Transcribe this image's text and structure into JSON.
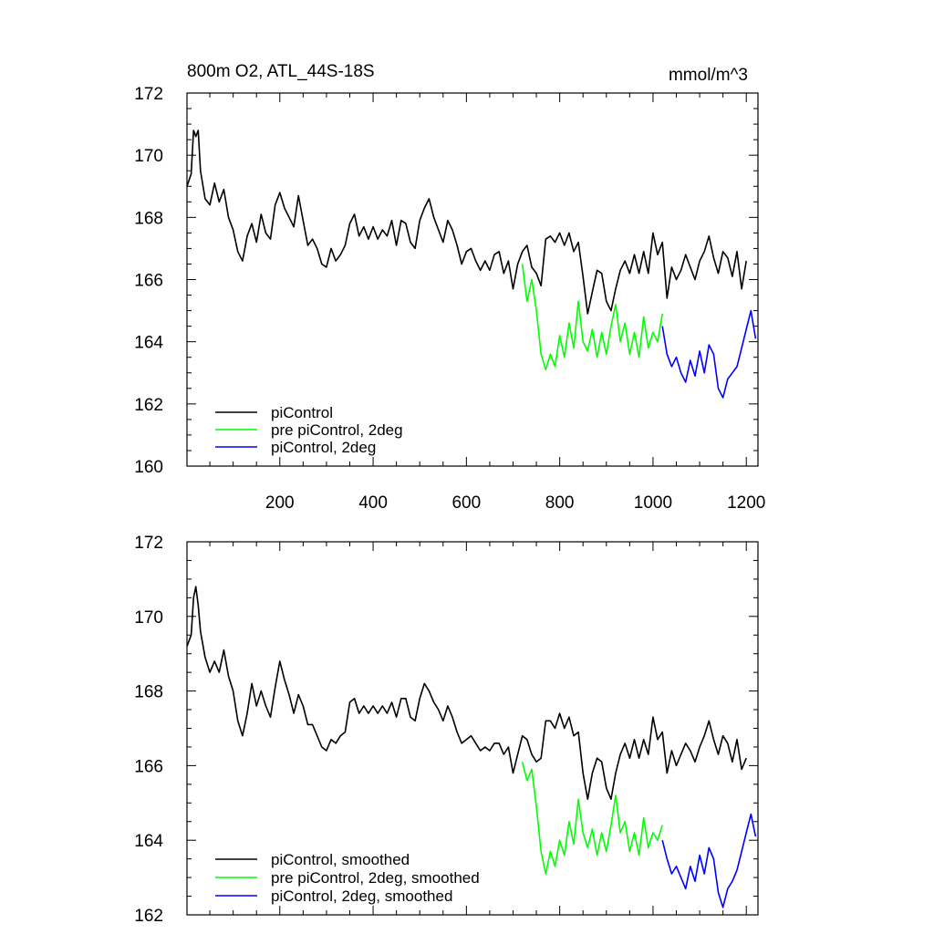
{
  "chart_data": [
    {
      "type": "line",
      "title": "800m O2, ATL_44S-18S",
      "units": "mmol/m^3",
      "xlim": [
        1,
        1225
      ],
      "ylim": [
        160,
        172
      ],
      "xticks": [
        200,
        400,
        600,
        800,
        1000,
        1200
      ],
      "yticks": [
        160,
        162,
        164,
        166,
        168,
        170,
        172
      ],
      "legend_position": "bottom-left",
      "series": [
        {
          "name": "piControl",
          "color": "#000000",
          "x": [
            1,
            10,
            15,
            20,
            25,
            30,
            40,
            50,
            60,
            70,
            80,
            90,
            100,
            110,
            120,
            130,
            140,
            150,
            160,
            170,
            180,
            190,
            200,
            210,
            220,
            230,
            240,
            250,
            260,
            270,
            280,
            290,
            300,
            310,
            320,
            330,
            340,
            350,
            360,
            370,
            380,
            390,
            400,
            410,
            420,
            430,
            440,
            450,
            460,
            470,
            480,
            490,
            500,
            510,
            520,
            530,
            540,
            550,
            560,
            570,
            580,
            590,
            600,
            610,
            620,
            630,
            640,
            650,
            660,
            670,
            680,
            690,
            700,
            710,
            720,
            730,
            740,
            750,
            760,
            770,
            780,
            790,
            800,
            810,
            820,
            830,
            840,
            850,
            860,
            870,
            880,
            890,
            900,
            910,
            920,
            930,
            940,
            950,
            960,
            970,
            980,
            990,
            1000,
            1010,
            1020,
            1030,
            1040,
            1050,
            1060,
            1070,
            1080,
            1090,
            1100,
            1110,
            1120,
            1130,
            1140,
            1150,
            1160,
            1170,
            1180,
            1190,
            1200
          ],
          "y": [
            169.0,
            169.4,
            170.8,
            170.6,
            170.8,
            169.5,
            168.6,
            168.4,
            169.1,
            168.5,
            168.9,
            168.0,
            167.6,
            166.9,
            166.6,
            167.4,
            167.8,
            167.2,
            168.1,
            167.5,
            167.3,
            168.4,
            168.8,
            168.3,
            168.0,
            167.7,
            168.7,
            167.9,
            167.1,
            167.3,
            167.0,
            166.5,
            166.4,
            167.0,
            166.6,
            166.8,
            167.1,
            167.8,
            168.1,
            167.4,
            167.7,
            167.3,
            167.7,
            167.3,
            167.6,
            167.4,
            167.9,
            167.1,
            167.9,
            167.8,
            167.2,
            167.0,
            167.9,
            168.3,
            168.6,
            168.0,
            167.6,
            167.2,
            167.9,
            167.6,
            167.1,
            166.5,
            166.9,
            167.0,
            166.6,
            166.3,
            166.6,
            166.3,
            166.8,
            166.9,
            166.2,
            166.6,
            165.7,
            166.5,
            166.9,
            167.1,
            166.4,
            166.2,
            165.8,
            167.3,
            167.4,
            167.2,
            167.5,
            167.1,
            167.5,
            166.9,
            167.2,
            166.1,
            164.9,
            165.6,
            166.3,
            166.2,
            165.3,
            165.0,
            165.7,
            166.3,
            166.6,
            166.2,
            166.8,
            166.2,
            166.9,
            166.2,
            167.5,
            166.8,
            167.2,
            165.4,
            166.4,
            166.0,
            166.3,
            166.8,
            166.4,
            166.0,
            166.6,
            166.9,
            167.4,
            166.7,
            166.2,
            166.9,
            166.7,
            166.1,
            166.9,
            165.7,
            166.6
          ]
        },
        {
          "name": "pre piControl, 2deg",
          "color": "#00ff00",
          "x": [
            720,
            730,
            740,
            750,
            760,
            770,
            780,
            790,
            800,
            810,
            820,
            830,
            840,
            850,
            860,
            870,
            880,
            890,
            900,
            910,
            920,
            930,
            940,
            950,
            960,
            970,
            980,
            990,
            1000,
            1010,
            1020
          ],
          "y": [
            166.5,
            165.3,
            166.0,
            165.0,
            163.6,
            163.1,
            163.6,
            163.2,
            164.2,
            163.5,
            164.6,
            163.8,
            165.3,
            164.0,
            163.7,
            164.4,
            163.5,
            164.3,
            163.6,
            164.5,
            165.2,
            164.0,
            164.6,
            163.6,
            164.3,
            163.5,
            164.8,
            163.8,
            164.3,
            164.0,
            164.9
          ]
        },
        {
          "name": "piControl, 2deg",
          "color": "#0000ff",
          "x": [
            1020,
            1030,
            1040,
            1050,
            1060,
            1070,
            1080,
            1090,
            1100,
            1110,
            1120,
            1130,
            1140,
            1150,
            1160,
            1170,
            1180,
            1190,
            1200,
            1210,
            1220
          ],
          "y": [
            164.5,
            163.6,
            163.2,
            163.5,
            163.0,
            162.7,
            163.4,
            162.9,
            163.7,
            163.0,
            163.9,
            163.6,
            162.5,
            162.2,
            162.8,
            163.0,
            163.2,
            163.8,
            164.4,
            165.0,
            164.1
          ]
        }
      ]
    },
    {
      "type": "line",
      "xlim": [
        1,
        1225
      ],
      "ylim": [
        162,
        172
      ],
      "yticks": [
        162,
        164,
        166,
        168,
        170,
        172
      ],
      "legend_position": "bottom-left",
      "series": [
        {
          "name": "piControl, smoothed",
          "color": "#000000",
          "x": [
            1,
            10,
            15,
            20,
            25,
            30,
            40,
            50,
            60,
            70,
            80,
            90,
            100,
            110,
            120,
            130,
            140,
            150,
            160,
            170,
            180,
            190,
            200,
            210,
            220,
            230,
            240,
            250,
            260,
            270,
            280,
            290,
            300,
            310,
            320,
            330,
            340,
            350,
            360,
            370,
            380,
            390,
            400,
            410,
            420,
            430,
            440,
            450,
            460,
            470,
            480,
            490,
            500,
            510,
            520,
            530,
            540,
            550,
            560,
            570,
            580,
            590,
            600,
            610,
            620,
            630,
            640,
            650,
            660,
            670,
            680,
            690,
            700,
            710,
            720,
            730,
            740,
            750,
            760,
            770,
            780,
            790,
            800,
            810,
            820,
            830,
            840,
            850,
            860,
            870,
            880,
            890,
            900,
            910,
            920,
            930,
            940,
            950,
            960,
            970,
            980,
            990,
            1000,
            1010,
            1020,
            1030,
            1040,
            1050,
            1060,
            1070,
            1080,
            1090,
            1100,
            1110,
            1120,
            1130,
            1140,
            1150,
            1160,
            1170,
            1180,
            1190,
            1200
          ],
          "y": [
            169.2,
            169.5,
            170.5,
            170.8,
            170.3,
            169.6,
            168.9,
            168.5,
            168.8,
            168.5,
            169.1,
            168.4,
            168.0,
            167.2,
            166.8,
            167.4,
            168.2,
            167.6,
            168.0,
            167.6,
            167.3,
            168.1,
            168.8,
            168.3,
            167.9,
            167.4,
            167.9,
            167.6,
            167.1,
            167.1,
            166.8,
            166.5,
            166.4,
            166.7,
            166.6,
            166.8,
            166.9,
            167.7,
            167.8,
            167.4,
            167.6,
            167.4,
            167.6,
            167.4,
            167.6,
            167.4,
            167.7,
            167.3,
            167.8,
            167.8,
            167.3,
            167.2,
            167.8,
            168.2,
            168.0,
            167.7,
            167.5,
            167.2,
            167.6,
            167.3,
            166.9,
            166.6,
            166.7,
            166.8,
            166.6,
            166.4,
            166.5,
            166.4,
            166.6,
            166.6,
            166.3,
            166.5,
            165.8,
            166.3,
            166.8,
            166.7,
            166.3,
            166.1,
            166.2,
            167.2,
            167.2,
            167.0,
            167.4,
            167.0,
            167.3,
            166.8,
            166.9,
            165.8,
            165.1,
            165.8,
            166.2,
            166.1,
            165.4,
            165.1,
            165.8,
            166.3,
            166.6,
            166.2,
            166.7,
            166.2,
            166.7,
            166.3,
            167.3,
            166.7,
            166.9,
            165.8,
            166.4,
            166.0,
            166.3,
            166.6,
            166.4,
            166.1,
            166.5,
            166.8,
            167.2,
            166.7,
            166.3,
            166.8,
            166.6,
            166.1,
            166.7,
            165.9,
            166.2
          ]
        },
        {
          "name": "pre piControl, 2deg, smoothed",
          "color": "#00ff00",
          "x": [
            720,
            730,
            740,
            750,
            760,
            770,
            780,
            790,
            800,
            810,
            820,
            830,
            840,
            850,
            860,
            870,
            880,
            890,
            900,
            910,
            920,
            930,
            940,
            950,
            960,
            970,
            980,
            990,
            1000,
            1010,
            1020
          ],
          "y": [
            166.1,
            165.6,
            165.9,
            164.9,
            163.7,
            163.1,
            163.7,
            163.3,
            164.0,
            163.6,
            164.5,
            163.9,
            165.1,
            164.2,
            163.8,
            164.3,
            163.6,
            164.2,
            163.7,
            164.4,
            165.2,
            164.2,
            164.5,
            163.7,
            164.2,
            163.6,
            164.6,
            163.8,
            164.2,
            164.0,
            164.4
          ]
        },
        {
          "name": "piControl, 2deg, smoothed",
          "color": "#0000ff",
          "x": [
            1020,
            1030,
            1040,
            1050,
            1060,
            1070,
            1080,
            1090,
            1100,
            1110,
            1120,
            1130,
            1140,
            1150,
            1160,
            1170,
            1180,
            1190,
            1200,
            1210,
            1220
          ],
          "y": [
            164.0,
            163.5,
            163.1,
            163.3,
            163.0,
            162.7,
            163.3,
            162.9,
            163.6,
            163.1,
            163.8,
            163.5,
            162.6,
            162.2,
            162.7,
            162.9,
            163.2,
            163.7,
            164.2,
            164.7,
            164.1
          ]
        }
      ]
    }
  ]
}
